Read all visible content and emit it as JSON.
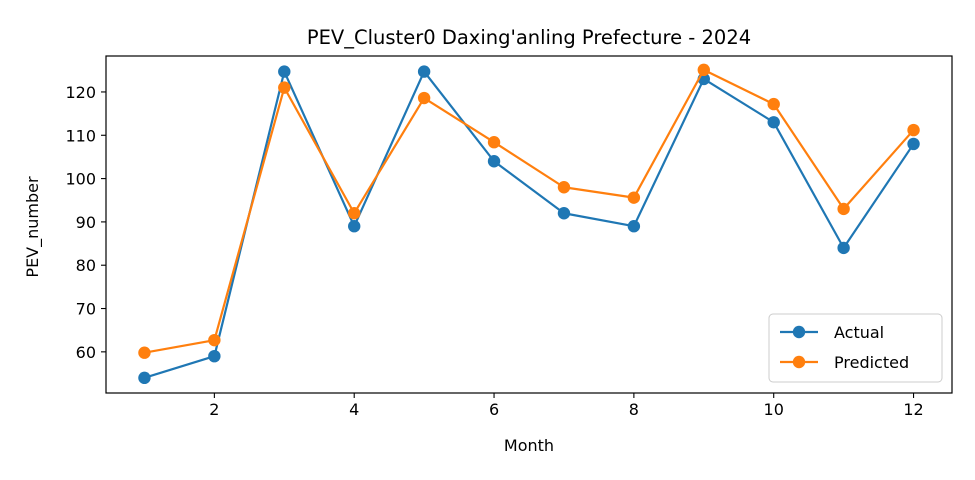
{
  "chart_data": {
    "type": "line",
    "title": "PEV_Cluster0 Daxing'anling Prefecture - 2024",
    "xlabel": "Month",
    "ylabel": "PEV_number",
    "x": [
      1,
      2,
      3,
      4,
      5,
      6,
      7,
      8,
      9,
      10,
      11,
      12
    ],
    "xlim": [
      0.45,
      12.55
    ],
    "ylim": [
      50.5,
      128.3
    ],
    "xticks": [
      2,
      4,
      6,
      8,
      10,
      12
    ],
    "yticks": [
      60,
      70,
      80,
      90,
      100,
      110,
      120
    ],
    "grid": false,
    "legend_position": "lower-right",
    "series": [
      {
        "name": "Actual",
        "color": "#1f77b4",
        "values": [
          54,
          59,
          124.7,
          89,
          124.7,
          104,
          92,
          89,
          123,
          113,
          84,
          108
        ]
      },
      {
        "name": "Predicted",
        "color": "#ff7f0e",
        "values": [
          59.8,
          62.7,
          121,
          92,
          118.6,
          108.4,
          98,
          95.6,
          125.1,
          117.2,
          93,
          111.2
        ]
      }
    ]
  }
}
